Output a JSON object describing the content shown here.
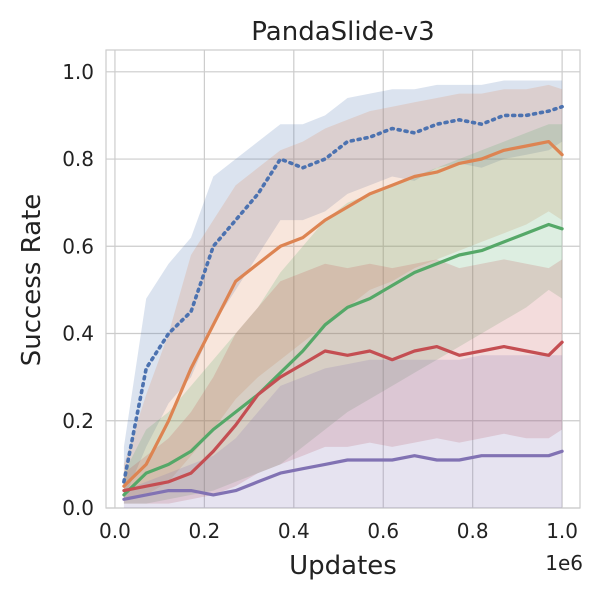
{
  "chart_data": {
    "type": "line",
    "title": "PandaSlide-v3",
    "xlabel": "Updates",
    "ylabel": "Success Rate",
    "x_offset_text": "1e6",
    "xlim": [
      -0.02,
      1.04
    ],
    "ylim": [
      0.0,
      1.05
    ],
    "x_ticks": [
      0.0,
      0.2,
      0.4,
      0.6,
      0.8,
      1.0
    ],
    "x_tick_labels": [
      "0.0",
      "0.2",
      "0.4",
      "0.6",
      "0.8",
      "1.0"
    ],
    "y_ticks": [
      0.0,
      0.2,
      0.4,
      0.6,
      0.8,
      1.0
    ],
    "y_tick_labels": [
      "0.0",
      "0.2",
      "0.4",
      "0.6",
      "0.8",
      "1.0"
    ],
    "grid": true,
    "legend": "none",
    "x": [
      0.02,
      0.07,
      0.12,
      0.17,
      0.22,
      0.27,
      0.32,
      0.37,
      0.42,
      0.47,
      0.52,
      0.57,
      0.62,
      0.67,
      0.72,
      0.77,
      0.82,
      0.87,
      0.92,
      0.97,
      1.0
    ],
    "series": [
      {
        "color": "#4c72b0",
        "style": "dotted",
        "values": [
          0.06,
          0.32,
          0.4,
          0.45,
          0.6,
          0.66,
          0.72,
          0.8,
          0.78,
          0.8,
          0.84,
          0.85,
          0.87,
          0.86,
          0.88,
          0.89,
          0.88,
          0.9,
          0.9,
          0.91,
          0.92
        ],
        "lower": [
          0.02,
          0.14,
          0.24,
          0.3,
          0.42,
          0.5,
          0.58,
          0.66,
          0.66,
          0.68,
          0.72,
          0.74,
          0.76,
          0.75,
          0.78,
          0.79,
          0.78,
          0.8,
          0.81,
          0.82,
          0.84
        ],
        "upper": [
          0.14,
          0.48,
          0.56,
          0.62,
          0.76,
          0.8,
          0.84,
          0.88,
          0.88,
          0.9,
          0.94,
          0.95,
          0.96,
          0.96,
          0.97,
          0.97,
          0.97,
          0.98,
          0.98,
          0.98,
          0.98
        ]
      },
      {
        "color": "#dd8452",
        "style": "solid",
        "values": [
          0.05,
          0.1,
          0.2,
          0.32,
          0.42,
          0.52,
          0.56,
          0.6,
          0.62,
          0.66,
          0.69,
          0.72,
          0.74,
          0.76,
          0.77,
          0.79,
          0.8,
          0.82,
          0.83,
          0.84,
          0.81
        ],
        "lower": [
          0.02,
          0.03,
          0.06,
          0.12,
          0.18,
          0.25,
          0.3,
          0.34,
          0.38,
          0.42,
          0.46,
          0.5,
          0.52,
          0.55,
          0.57,
          0.59,
          0.61,
          0.63,
          0.65,
          0.68,
          0.66
        ],
        "upper": [
          0.1,
          0.26,
          0.4,
          0.58,
          0.66,
          0.74,
          0.78,
          0.82,
          0.84,
          0.87,
          0.89,
          0.91,
          0.92,
          0.93,
          0.94,
          0.95,
          0.95,
          0.96,
          0.96,
          0.97,
          0.96
        ]
      },
      {
        "color": "#55a868",
        "style": "solid",
        "values": [
          0.03,
          0.08,
          0.1,
          0.13,
          0.18,
          0.22,
          0.26,
          0.31,
          0.36,
          0.42,
          0.46,
          0.48,
          0.51,
          0.54,
          0.56,
          0.58,
          0.59,
          0.61,
          0.63,
          0.65,
          0.64
        ],
        "lower": [
          0.01,
          0.01,
          0.02,
          0.03,
          0.04,
          0.06,
          0.08,
          0.1,
          0.14,
          0.18,
          0.22,
          0.25,
          0.28,
          0.31,
          0.34,
          0.37,
          0.4,
          0.43,
          0.46,
          0.5,
          0.48
        ],
        "upper": [
          0.08,
          0.18,
          0.22,
          0.28,
          0.34,
          0.4,
          0.46,
          0.54,
          0.6,
          0.66,
          0.7,
          0.72,
          0.74,
          0.76,
          0.78,
          0.8,
          0.82,
          0.84,
          0.86,
          0.88,
          0.88
        ]
      },
      {
        "color": "#c44e52",
        "style": "solid",
        "values": [
          0.04,
          0.05,
          0.06,
          0.08,
          0.13,
          0.19,
          0.26,
          0.3,
          0.33,
          0.36,
          0.35,
          0.36,
          0.34,
          0.36,
          0.37,
          0.35,
          0.36,
          0.37,
          0.36,
          0.35,
          0.38
        ],
        "lower": [
          0.01,
          0.01,
          0.01,
          0.02,
          0.03,
          0.05,
          0.08,
          0.1,
          0.12,
          0.14,
          0.14,
          0.15,
          0.14,
          0.15,
          0.16,
          0.15,
          0.16,
          0.17,
          0.16,
          0.16,
          0.18
        ],
        "upper": [
          0.08,
          0.12,
          0.16,
          0.22,
          0.3,
          0.4,
          0.46,
          0.52,
          0.54,
          0.56,
          0.55,
          0.56,
          0.55,
          0.56,
          0.57,
          0.55,
          0.56,
          0.57,
          0.56,
          0.55,
          0.57
        ]
      },
      {
        "color": "#8172b3",
        "style": "solid",
        "values": [
          0.02,
          0.03,
          0.04,
          0.04,
          0.03,
          0.04,
          0.06,
          0.08,
          0.09,
          0.1,
          0.11,
          0.11,
          0.11,
          0.12,
          0.11,
          0.11,
          0.12,
          0.12,
          0.12,
          0.12,
          0.13
        ],
        "lower": [
          0.0,
          0.0,
          0.0,
          0.0,
          0.0,
          0.0,
          0.0,
          0.0,
          0.0,
          0.0,
          0.0,
          0.0,
          0.0,
          0.0,
          0.0,
          0.0,
          0.0,
          0.0,
          0.0,
          0.0,
          0.0
        ],
        "upper": [
          0.04,
          0.06,
          0.08,
          0.1,
          0.12,
          0.16,
          0.22,
          0.28,
          0.3,
          0.32,
          0.33,
          0.34,
          0.34,
          0.34,
          0.34,
          0.34,
          0.35,
          0.35,
          0.35,
          0.35,
          0.35
        ]
      }
    ]
  }
}
